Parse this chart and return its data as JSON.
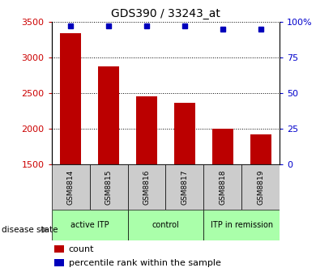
{
  "title": "GDS390 / 33243_at",
  "samples": [
    "GSM8814",
    "GSM8815",
    "GSM8816",
    "GSM8817",
    "GSM8818",
    "GSM8819"
  ],
  "counts": [
    3340,
    2870,
    2460,
    2360,
    2000,
    1920
  ],
  "percentile_ranks": [
    97,
    97,
    97,
    97,
    95,
    95
  ],
  "ylim_left": [
    1500,
    3500
  ],
  "ylim_right": [
    0,
    100
  ],
  "yticks_left": [
    1500,
    2000,
    2500,
    3000,
    3500
  ],
  "yticks_right": [
    0,
    25,
    50,
    75,
    100
  ],
  "ytick_labels_right": [
    "0",
    "25",
    "50",
    "75",
    "100%"
  ],
  "bar_color": "#bb0000",
  "dot_color": "#0000bb",
  "group_data": [
    {
      "label": "active ITP",
      "start": 0,
      "end": 2,
      "color": "#aaffaa"
    },
    {
      "label": "control",
      "start": 2,
      "end": 4,
      "color": "#aaffaa"
    },
    {
      "label": "ITP in remission",
      "start": 4,
      "end": 6,
      "color": "#aaffaa"
    }
  ],
  "tick_color_left": "#cc0000",
  "tick_color_right": "#0000cc",
  "bar_width": 0.55,
  "dot_size": 5,
  "left_label_color": "#cc0000",
  "right_label_color": "#0000cc"
}
